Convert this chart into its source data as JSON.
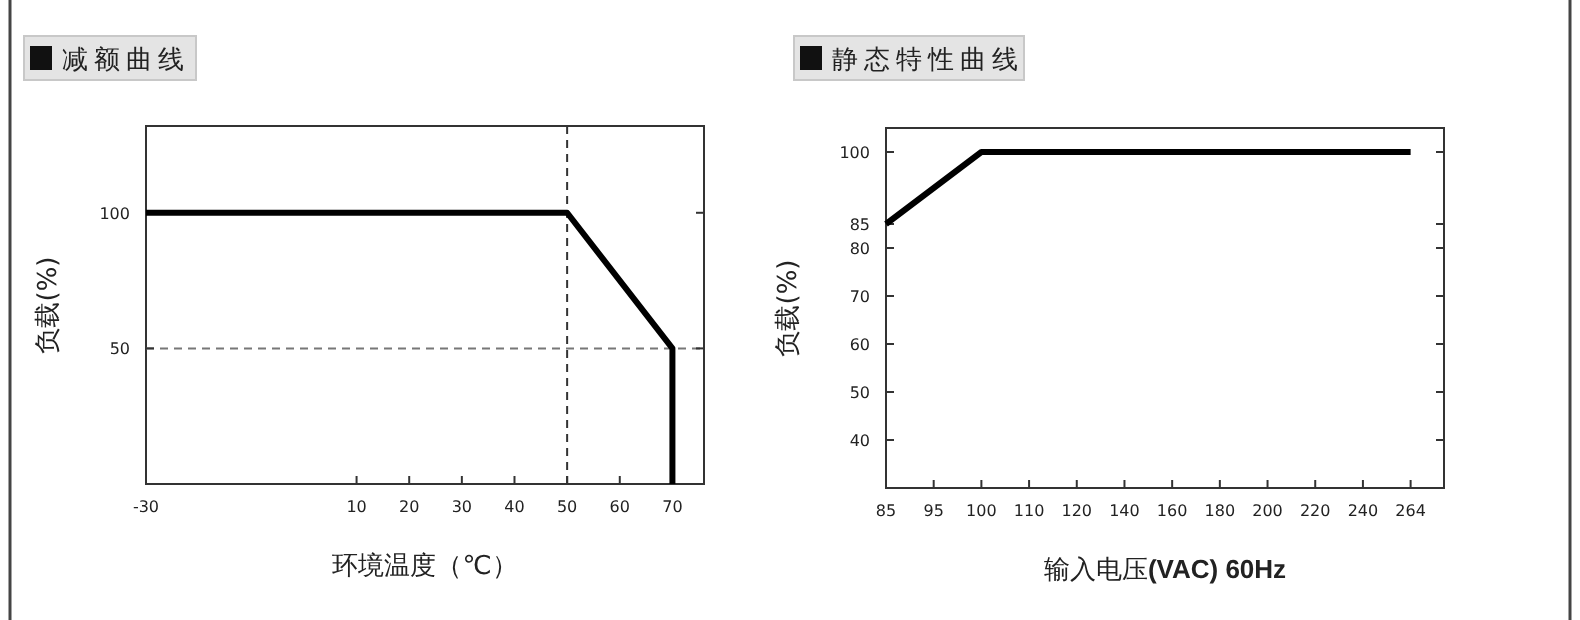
{
  "chart_data": [
    {
      "type": "line",
      "title": "减额曲线",
      "xlabel": "环境温度（℃）",
      "ylabel": "负载(%)",
      "x": [
        -30,
        50,
        70,
        70
      ],
      "series": [
        {
          "color": "#000000",
          "values": [
            100,
            100,
            50,
            0
          ]
        }
      ],
      "xlim": [
        -30,
        76
      ],
      "xticks": [
        -30,
        10,
        20,
        30,
        40,
        50,
        60,
        70
      ],
      "ylim": [
        0,
        132
      ],
      "yticks": [
        50,
        100
      ],
      "ref_lines": [
        {
          "axis": "x",
          "value": 50,
          "color": "#333333",
          "line_style": "dashed"
        },
        {
          "axis": "y",
          "value": 50,
          "color": "#777777",
          "line_style": "dashed"
        }
      ],
      "grid": false,
      "marker": "none",
      "line_style": "solid"
    },
    {
      "type": "line",
      "title": "静态特性曲线",
      "xlabel": "输入电压**(VAC) 60Hz**",
      "ylabel": "负载(%)",
      "categories": [
        "85",
        "95",
        "100",
        "110",
        "120",
        "140",
        "160",
        "180",
        "200",
        "220",
        "240",
        "264"
      ],
      "series": [
        {
          "color": "#000000",
          "values": [
            85,
            92.5,
            100,
            100,
            100,
            100,
            100,
            100,
            100,
            100,
            100,
            100
          ]
        }
      ],
      "ylim": [
        30,
        105
      ],
      "yticks": [
        40,
        50,
        60,
        70,
        80,
        85,
        100
      ],
      "grid": false,
      "marker": "none",
      "line_style": "solid"
    }
  ]
}
